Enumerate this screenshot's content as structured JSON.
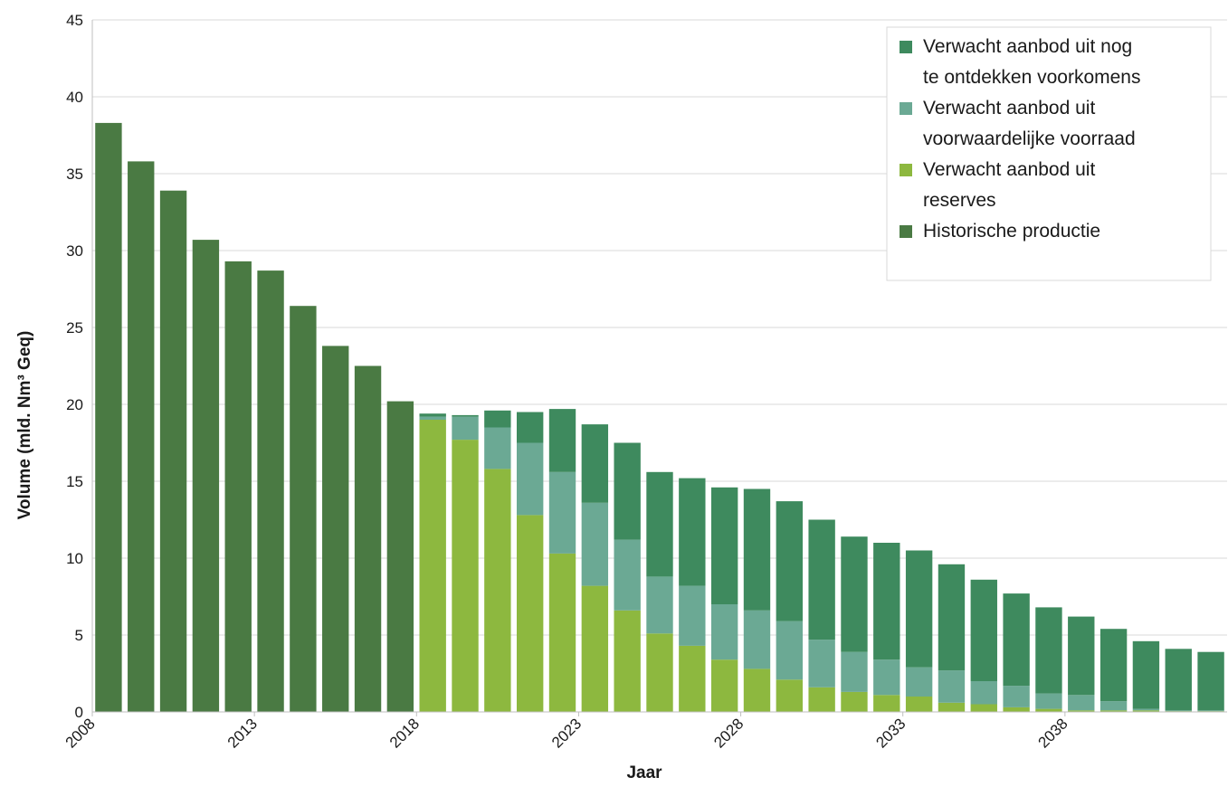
{
  "chart_data": {
    "type": "bar",
    "stacked": true,
    "xlabel": "Jaar",
    "ylabel": "Volume (mld. Nm³ Geq)",
    "ylim": [
      0,
      45
    ],
    "yticks": [
      0,
      5,
      10,
      15,
      20,
      25,
      30,
      35,
      40,
      45
    ],
    "xticks_shown": [
      "2008",
      "2013",
      "2018",
      "2023",
      "2028",
      "2033",
      "2038"
    ],
    "grid": "horizontal",
    "legend_position": "top-right",
    "categories": [
      "2008",
      "2009",
      "2010",
      "2011",
      "2012",
      "2013",
      "2014",
      "2015",
      "2016",
      "2017",
      "2018",
      "2019",
      "2020",
      "2021",
      "2022",
      "2023",
      "2024",
      "2025",
      "2026",
      "2027",
      "2028",
      "2029",
      "2030",
      "2031",
      "2032",
      "2033",
      "2034",
      "2035",
      "2036",
      "2037",
      "2038",
      "2039",
      "2040",
      "2041",
      "2042"
    ],
    "series": [
      {
        "key": "historisch",
        "name": "Historische productie",
        "color": "#4a7a43",
        "values": [
          38.3,
          35.8,
          33.9,
          30.7,
          29.3,
          28.7,
          26.4,
          23.8,
          22.5,
          20.2,
          0,
          0,
          0,
          0,
          0,
          0,
          0,
          0,
          0,
          0,
          0,
          0,
          0,
          0,
          0,
          0,
          0,
          0,
          0,
          0,
          0,
          0,
          0,
          0,
          0
        ]
      },
      {
        "key": "reserves",
        "name": "Verwacht aanbod uit reserves",
        "color": "#8db83f",
        "values": [
          0,
          0,
          0,
          0,
          0,
          0,
          0,
          0,
          0,
          0,
          19.0,
          17.7,
          15.8,
          12.8,
          10.3,
          8.2,
          6.6,
          5.1,
          4.3,
          3.4,
          2.8,
          2.1,
          1.6,
          1.3,
          1.1,
          1.0,
          0.6,
          0.5,
          0.3,
          0.2,
          0.1,
          0.1,
          0.1,
          0.05,
          0.05
        ]
      },
      {
        "key": "voorwaardelijk",
        "name": "Verwacht aanbod uit voorwaardelijke voorraad",
        "color": "#6ba994",
        "values": [
          0,
          0,
          0,
          0,
          0,
          0,
          0,
          0,
          0,
          0,
          0.2,
          1.5,
          2.7,
          4.7,
          5.3,
          5.4,
          4.6,
          3.7,
          3.9,
          3.6,
          3.8,
          3.8,
          3.1,
          2.6,
          2.3,
          1.9,
          2.1,
          1.5,
          1.4,
          1.0,
          1.0,
          0.6,
          0.1,
          0.05,
          0.05
        ]
      },
      {
        "key": "nog-te-ontdekken",
        "name": "Verwacht aanbod uit nog te ontdekken voorkomens",
        "color": "#3e8a5e",
        "values": [
          0,
          0,
          0,
          0,
          0,
          0,
          0,
          0,
          0,
          0,
          0.2,
          0.1,
          1.1,
          2.0,
          4.1,
          5.1,
          6.3,
          6.8,
          7.0,
          7.6,
          7.9,
          7.8,
          7.8,
          7.5,
          7.6,
          7.6,
          6.9,
          6.6,
          6.0,
          5.6,
          5.1,
          4.7,
          4.4,
          4.0,
          3.8
        ]
      }
    ],
    "legend_lines": [
      {
        "series": "nog-te-ontdekken",
        "lines": [
          "Verwacht aanbod uit nog",
          "te ontdekken voorkomens"
        ]
      },
      {
        "series": "voorwaardelijk",
        "lines": [
          "Verwacht aanbod uit",
          "voorwaardelijke voorraad"
        ]
      },
      {
        "series": "reserves",
        "lines": [
          "Verwacht aanbod uit",
          "reserves"
        ]
      },
      {
        "series": "historisch",
        "lines": [
          "Historische productie"
        ]
      }
    ]
  }
}
